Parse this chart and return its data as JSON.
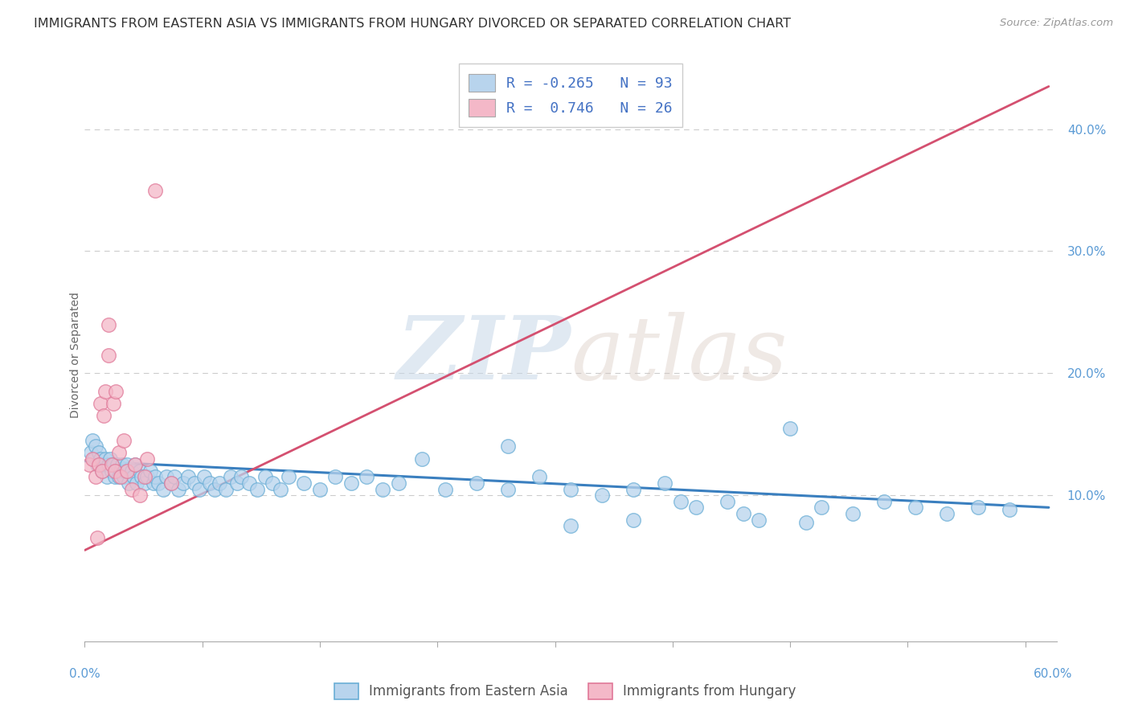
{
  "title": "IMMIGRANTS FROM EASTERN ASIA VS IMMIGRANTS FROM HUNGARY DIVORCED OR SEPARATED CORRELATION CHART",
  "source": "Source: ZipAtlas.com",
  "ylabel": "Divorced or Separated",
  "xlim": [
    0.0,
    0.62
  ],
  "ylim": [
    -0.02,
    0.45
  ],
  "ytick_positions": [
    0.1,
    0.2,
    0.3,
    0.4
  ],
  "ytick_labels": [
    "10.0%",
    "20.0%",
    "30.0%",
    "40.0%"
  ],
  "xtick_positions": [
    0.0,
    0.075,
    0.15,
    0.225,
    0.3,
    0.375,
    0.45,
    0.525,
    0.6
  ],
  "blue_R": -0.265,
  "blue_N": 93,
  "pink_R": 0.746,
  "pink_N": 26,
  "blue_dot_facecolor": "#b8d4ed",
  "blue_dot_edgecolor": "#6aaed6",
  "pink_dot_facecolor": "#f4b8c8",
  "pink_dot_edgecolor": "#e07898",
  "blue_line_color": "#3a7fbf",
  "pink_line_color": "#d45070",
  "legend_label_blue": "Immigrants from Eastern Asia",
  "legend_label_pink": "Immigrants from Hungary",
  "watermark_zip": "ZIP",
  "watermark_atlas": "atlas",
  "background_color": "#ffffff",
  "grid_color": "#cccccc",
  "title_color": "#333333",
  "title_fontsize": 11.5,
  "tick_color": "#5b9bd5",
  "tick_fontsize": 11,
  "blue_trend_x0": 0.0,
  "blue_trend_x1": 0.615,
  "blue_trend_y0": 0.128,
  "blue_trend_y1": 0.09,
  "pink_trend_x0": 0.0,
  "pink_trend_x1": 0.615,
  "pink_trend_y0": 0.055,
  "pink_trend_y1": 0.435,
  "blue_x": [
    0.004,
    0.005,
    0.006,
    0.007,
    0.008,
    0.009,
    0.01,
    0.011,
    0.012,
    0.013,
    0.014,
    0.015,
    0.016,
    0.017,
    0.018,
    0.019,
    0.02,
    0.021,
    0.022,
    0.023,
    0.024,
    0.025,
    0.026,
    0.027,
    0.028,
    0.03,
    0.031,
    0.032,
    0.033,
    0.035,
    0.036,
    0.038,
    0.04,
    0.042,
    0.044,
    0.045,
    0.047,
    0.05,
    0.052,
    0.055,
    0.057,
    0.06,
    0.063,
    0.066,
    0.07,
    0.073,
    0.076,
    0.08,
    0.083,
    0.086,
    0.09,
    0.093,
    0.097,
    0.1,
    0.105,
    0.11,
    0.115,
    0.12,
    0.125,
    0.13,
    0.14,
    0.15,
    0.16,
    0.17,
    0.18,
    0.19,
    0.2,
    0.215,
    0.23,
    0.25,
    0.27,
    0.29,
    0.31,
    0.33,
    0.35,
    0.37,
    0.39,
    0.41,
    0.43,
    0.45,
    0.47,
    0.49,
    0.51,
    0.53,
    0.55,
    0.57,
    0.59,
    0.38,
    0.42,
    0.46,
    0.27,
    0.35,
    0.31
  ],
  "blue_y": [
    0.135,
    0.145,
    0.13,
    0.14,
    0.125,
    0.135,
    0.13,
    0.12,
    0.125,
    0.13,
    0.115,
    0.125,
    0.13,
    0.12,
    0.125,
    0.115,
    0.12,
    0.125,
    0.115,
    0.12,
    0.125,
    0.115,
    0.12,
    0.125,
    0.11,
    0.12,
    0.115,
    0.125,
    0.11,
    0.12,
    0.115,
    0.11,
    0.115,
    0.12,
    0.11,
    0.115,
    0.11,
    0.105,
    0.115,
    0.11,
    0.115,
    0.105,
    0.11,
    0.115,
    0.11,
    0.105,
    0.115,
    0.11,
    0.105,
    0.11,
    0.105,
    0.115,
    0.11,
    0.115,
    0.11,
    0.105,
    0.115,
    0.11,
    0.105,
    0.115,
    0.11,
    0.105,
    0.115,
    0.11,
    0.115,
    0.105,
    0.11,
    0.13,
    0.105,
    0.11,
    0.105,
    0.115,
    0.105,
    0.1,
    0.105,
    0.11,
    0.09,
    0.095,
    0.08,
    0.155,
    0.09,
    0.085,
    0.095,
    0.09,
    0.085,
    0.09,
    0.088,
    0.095,
    0.085,
    0.078,
    0.14,
    0.08,
    0.075
  ],
  "pink_x": [
    0.003,
    0.005,
    0.007,
    0.009,
    0.01,
    0.011,
    0.012,
    0.013,
    0.015,
    0.015,
    0.017,
    0.018,
    0.019,
    0.02,
    0.022,
    0.023,
    0.025,
    0.027,
    0.03,
    0.032,
    0.035,
    0.038,
    0.04,
    0.045,
    0.055,
    0.008
  ],
  "pink_y": [
    0.125,
    0.13,
    0.115,
    0.125,
    0.175,
    0.12,
    0.165,
    0.185,
    0.215,
    0.24,
    0.125,
    0.175,
    0.12,
    0.185,
    0.135,
    0.115,
    0.145,
    0.12,
    0.105,
    0.125,
    0.1,
    0.115,
    0.13,
    0.35,
    0.11,
    0.065
  ]
}
